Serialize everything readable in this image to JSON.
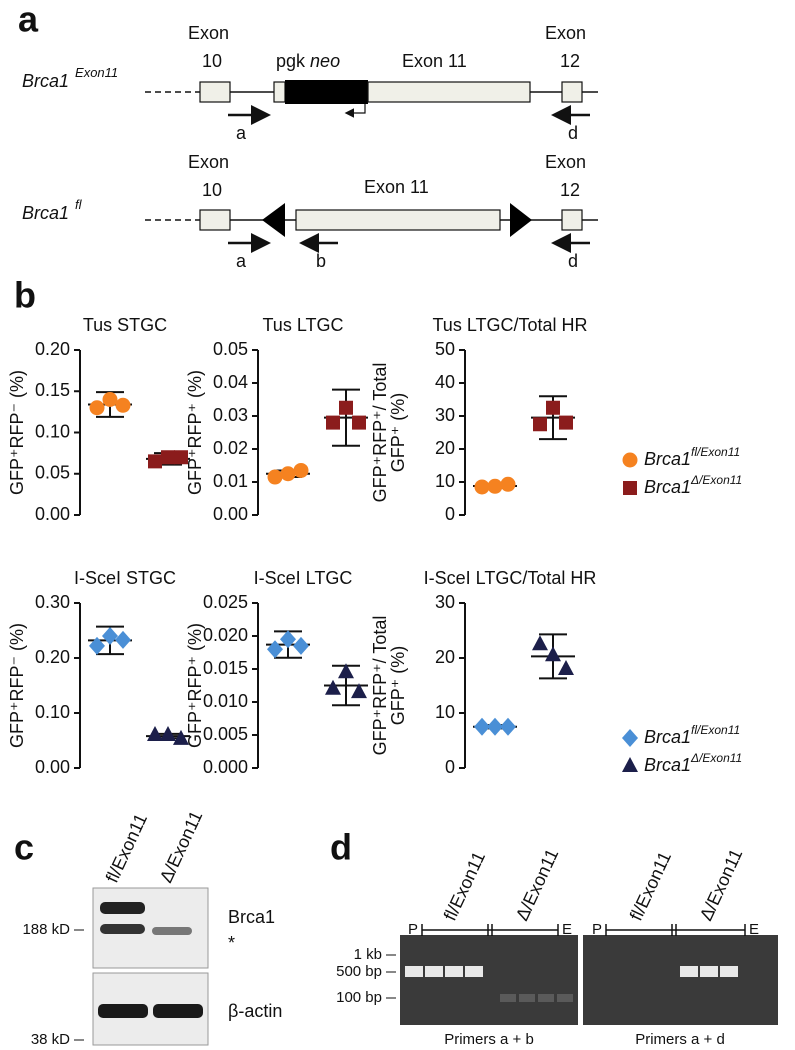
{
  "panel_labels": {
    "a": "a",
    "b": "b",
    "c": "c",
    "d": "d"
  },
  "gene_map": {
    "rows": [
      {
        "gene": "Brca1",
        "allele": "Exon11",
        "exon_left": [
          "Exon",
          "10"
        ],
        "cassette": [
          "pgk",
          "neo"
        ],
        "exon_middle": "Exon 11",
        "exon_right": [
          "Exon",
          "12"
        ],
        "primers": [
          "a",
          "d"
        ]
      },
      {
        "gene": "Brca1",
        "allele": "fl",
        "exon_left": [
          "Exon",
          "10"
        ],
        "exon_middle": "Exon 11",
        "exon_right": [
          "Exon",
          "12"
        ],
        "primers": [
          "a",
          "b",
          "d"
        ]
      }
    ]
  },
  "chart_data": [
    {
      "type": "scatter",
      "title": "Tus STGC",
      "ylabel": [
        "GFP⁺RFP⁻ (%)"
      ],
      "ylim": [
        0,
        0.2
      ],
      "yticks": [
        {
          "value": 0,
          "label": "0.00"
        },
        0.05,
        {
          "value": 0.1,
          "label": "0.10"
        },
        0.15,
        {
          "value": 0.2,
          "label": "0.20"
        }
      ],
      "series": [
        {
          "color": "#f58220",
          "marker": "circle",
          "values": [
            0.13,
            0.14,
            0.133
          ],
          "mean": 0.134,
          "error": 0.015
        },
        {
          "color": "#8b1c1c",
          "marker": "square",
          "values": [
            0.065,
            0.07,
            0.07
          ],
          "mean": 0.068,
          "error": 0.007
        }
      ]
    },
    {
      "type": "scatter",
      "title": "Tus LTGC",
      "ylabel": [
        "GFP⁺RFP⁺ (%)"
      ],
      "ylim": [
        0,
        0.05
      ],
      "yticks": [
        {
          "value": 0,
          "label": "0.00"
        },
        0.01,
        0.02,
        0.03,
        0.04,
        0.05
      ],
      "series": [
        {
          "color": "#f58220",
          "marker": "circle",
          "values": [
            0.0115,
            0.0125,
            0.0135
          ],
          "mean": 0.0125,
          "error": 0.001
        },
        {
          "color": "#8b1c1c",
          "marker": "square",
          "values": [
            0.028,
            0.0325,
            0.028
          ],
          "mean": 0.0295,
          "error": 0.0085
        }
      ]
    },
    {
      "type": "scatter",
      "title": "Tus LTGC/Total HR",
      "ylabel": [
        "GFP⁺RFP⁺/ Total",
        "GFP⁺ (%)"
      ],
      "ylim": [
        0,
        50
      ],
      "yticks": [
        0,
        10,
        20,
        30,
        40,
        50
      ],
      "series": [
        {
          "color": "#f58220",
          "marker": "circle",
          "values": [
            8.5,
            8.7,
            9.3
          ],
          "mean": 8.8,
          "error": 0.6
        },
        {
          "color": "#8b1c1c",
          "marker": "square",
          "values": [
            27.5,
            32.5,
            28
          ],
          "mean": 29.5,
          "error": 6.5
        }
      ]
    },
    {
      "type": "scatter",
      "title": "I-SceI STGC",
      "ylabel": [
        "GFP⁺RFP⁻ (%)"
      ],
      "ylim": [
        0,
        0.3
      ],
      "yticks": [
        {
          "value": 0,
          "label": "0.00"
        },
        {
          "value": 0.1,
          "label": "0.10"
        },
        {
          "value": 0.2,
          "label": "0.20"
        },
        {
          "value": 0.3,
          "label": "0.30"
        }
      ],
      "series": [
        {
          "color": "#4a8fd6",
          "marker": "diamond",
          "values": [
            0.222,
            0.24,
            0.233
          ],
          "mean": 0.232,
          "error": 0.025
        },
        {
          "color": "#1c1f4a",
          "marker": "triangle",
          "values": [
            0.06,
            0.06,
            0.053
          ],
          "mean": 0.058,
          "error": 0.004
        }
      ]
    },
    {
      "type": "scatter",
      "title": "I-SceI LTGC",
      "ylabel": [
        "GFP⁺RFP⁺ (%)"
      ],
      "ylim": [
        0,
        0.025
      ],
      "yticks": [
        {
          "value": 0,
          "label": "0.000"
        },
        0.005,
        {
          "value": 0.01,
          "label": "0.010"
        },
        0.015,
        {
          "value": 0.02,
          "label": "0.020"
        },
        0.025
      ],
      "series": [
        {
          "color": "#4a8fd6",
          "marker": "diamond",
          "values": [
            0.018,
            0.0195,
            0.0185
          ],
          "mean": 0.0187,
          "error": 0.002
        },
        {
          "color": "#1c1f4a",
          "marker": "triangle",
          "values": [
            0.012,
            0.0145,
            0.0115
          ],
          "mean": 0.0125,
          "error": 0.003
        }
      ]
    },
    {
      "type": "scatter",
      "title": "I-SceI LTGC/Total HR",
      "ylabel": [
        "GFP⁺RFP⁺/ Total",
        "GFP⁺ (%)"
      ],
      "ylim": [
        0,
        30
      ],
      "yticks": [
        0,
        10,
        20,
        30
      ],
      "series": [
        {
          "color": "#4a8fd6",
          "marker": "diamond",
          "values": [
            7.5,
            7.5,
            7.5
          ],
          "mean": 7.5,
          "error": 0.3
        },
        {
          "color": "#1c1f4a",
          "marker": "triangle",
          "values": [
            22.5,
            20.5,
            18
          ],
          "mean": 20.3,
          "error": 4
        }
      ]
    }
  ],
  "legends": [
    {
      "entries": [
        {
          "gene": "Brca1",
          "allele": "fl/Exon11",
          "color": "#f58220",
          "marker": "circle"
        },
        {
          "gene": "Brca1",
          "allele": "Δ/Exon11",
          "color": "#8b1c1c",
          "marker": "square"
        }
      ]
    },
    {
      "entries": [
        {
          "gene": "Brca1",
          "allele": "fl/Exon11",
          "color": "#4a8fd6",
          "marker": "diamond"
        },
        {
          "gene": "Brca1",
          "allele": "Δ/Exon11",
          "color": "#1c1f4a",
          "marker": "triangle"
        }
      ]
    }
  ],
  "western_blot": {
    "lanes": [
      "fl/Exon11",
      "Δ/Exon11"
    ],
    "markers": [
      "188 kD",
      "38 kD"
    ],
    "labels": [
      "Brca1",
      "*",
      "β-actin"
    ]
  },
  "pcr_gels": {
    "size_markers": [
      "1 kb",
      "500 bp",
      "100 bp"
    ],
    "gels": [
      {
        "lanes": [
          "P",
          "fl/Exon11",
          "Δ/Exon11",
          "E"
        ],
        "caption": "Primers a + b"
      },
      {
        "lanes": [
          "P",
          "fl/Exon11",
          "Δ/Exon11",
          "E"
        ],
        "caption": "Primers a + d"
      }
    ]
  }
}
